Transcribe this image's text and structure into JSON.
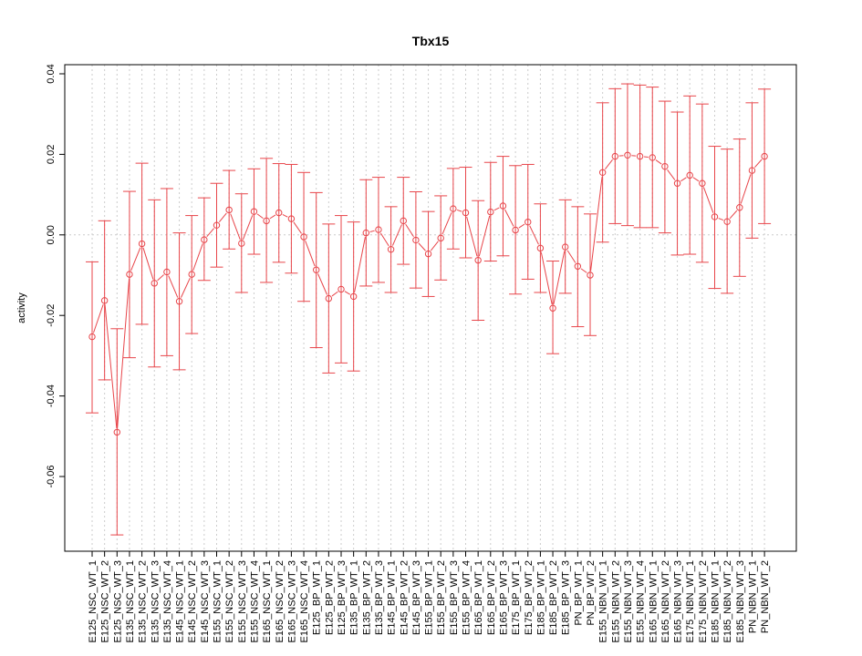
{
  "chart_data": {
    "type": "line",
    "title": "Tbx15",
    "xlabel": "",
    "ylabel": "activity",
    "ylim": [
      -0.08,
      0.04
    ],
    "yticks": [
      0.04,
      0.02,
      0.0,
      -0.02,
      -0.04,
      -0.06
    ],
    "ytick_labels": [
      "0.04",
      "0.02",
      "0.00",
      "-0.02",
      "-0.04",
      "-0.06"
    ],
    "grid": true,
    "zero_line": true,
    "series_color": "#e8454a",
    "grid_color": "#cccccc",
    "categories": [
      "E125_NSC_WT_1",
      "E125_NSC_WT_2",
      "E125_NSC_WT_3",
      "E135_NSC_WT_1",
      "E135_NSC_WT_2",
      "E135_NSC_WT_3",
      "E135_NSC_WT_4",
      "E145_NSC_WT_1",
      "E145_NSC_WT_2",
      "E145_NSC_WT_3",
      "E155_NSC_WT_1",
      "E155_NSC_WT_2",
      "E155_NSC_WT_3",
      "E155_NSC_WT_4",
      "E165_NSC_WT_1",
      "E165_NSC_WT_2",
      "E165_NSC_WT_3",
      "E165_NSC_WT_4",
      "E125_BP_WT_1",
      "E125_BP_WT_2",
      "E125_BP_WT_3",
      "E135_BP_WT_1",
      "E135_BP_WT_2",
      "E135_BP_WT_3",
      "E145_BP_WT_1",
      "E145_BP_WT_2",
      "E145_BP_WT_3",
      "E155_BP_WT_1",
      "E155_BP_WT_2",
      "E155_BP_WT_3",
      "E155_BP_WT_4",
      "E165_BP_WT_1",
      "E165_BP_WT_2",
      "E165_BP_WT_3",
      "E175_BP_WT_1",
      "E175_BP_WT_2",
      "E185_BP_WT_1",
      "E185_BP_WT_2",
      "E185_BP_WT_3",
      "PN_BP_WT_1",
      "PN_BP_WT_2",
      "E155_NBN_WT_1",
      "E155_NBN_WT_2",
      "E155_NBN_WT_3",
      "E155_NBN_WT_4",
      "E165_NBN_WT_1",
      "E165_NBN_WT_2",
      "E165_NBN_WT_3",
      "E175_NBN_WT_1",
      "E175_NBN_WT_2",
      "E185_NBN_WT_1",
      "E185_NBN_WT_2",
      "E185_NBN_WT_3",
      "PN_NBN_WT_1",
      "PN_NBN_WT_2"
    ],
    "values": [
      -0.0253,
      -0.0163,
      -0.049,
      -0.0098,
      -0.0022,
      -0.012,
      -0.0092,
      -0.0165,
      -0.0098,
      -0.0012,
      0.0024,
      0.0062,
      -0.0021,
      0.0058,
      0.0035,
      0.0055,
      0.004,
      -0.0005,
      -0.0087,
      -0.0158,
      -0.0135,
      -0.0153,
      0.0005,
      0.0013,
      -0.0036,
      0.0035,
      -0.0013,
      -0.0047,
      -0.0008,
      0.0065,
      0.0055,
      -0.0063,
      0.0057,
      0.0072,
      0.0012,
      0.0032,
      -0.0033,
      -0.0182,
      -0.003,
      -0.0078,
      -0.01,
      0.0155,
      0.0195,
      0.0198,
      0.0195,
      0.0192,
      0.017,
      0.0128,
      0.0148,
      0.0128,
      0.0045,
      0.0033,
      0.0068,
      0.016,
      0.0195
    ],
    "upper": [
      -0.0067,
      0.0035,
      -0.0233,
      0.0108,
      0.0178,
      0.0087,
      0.0115,
      0.0005,
      0.0048,
      0.0092,
      0.0128,
      0.016,
      0.0102,
      0.0164,
      0.019,
      0.0177,
      0.0175,
      0.0155,
      0.0105,
      0.0027,
      0.0048,
      0.0032,
      0.0137,
      0.0143,
      0.007,
      0.0143,
      0.0107,
      0.0058,
      0.0097,
      0.0165,
      0.0168,
      0.0085,
      0.018,
      0.0195,
      0.0172,
      0.0175,
      0.0077,
      -0.0065,
      0.0087,
      0.007,
      0.0052,
      0.0328,
      0.0363,
      0.0375,
      0.0372,
      0.0367,
      0.0332,
      0.0305,
      0.0345,
      0.0325,
      0.022,
      0.0213,
      0.0238,
      0.0328,
      0.0362
    ],
    "lower": [
      -0.0442,
      -0.036,
      -0.0745,
      -0.0305,
      -0.0222,
      -0.0328,
      -0.03,
      -0.0335,
      -0.0245,
      -0.0113,
      -0.008,
      -0.0035,
      -0.0143,
      -0.0048,
      -0.0118,
      -0.0068,
      -0.0095,
      -0.0165,
      -0.028,
      -0.0343,
      -0.0318,
      -0.0338,
      -0.0127,
      -0.0118,
      -0.0143,
      -0.0073,
      -0.0132,
      -0.0153,
      -0.0112,
      -0.0035,
      -0.0057,
      -0.0212,
      -0.0065,
      -0.0052,
      -0.0147,
      -0.011,
      -0.0143,
      -0.0295,
      -0.0145,
      -0.0228,
      -0.025,
      -0.0018,
      0.0028,
      0.0023,
      0.0018,
      0.0018,
      0.0005,
      -0.005,
      -0.0048,
      -0.0068,
      -0.0133,
      -0.0145,
      -0.0103,
      -0.0008,
      0.0028
    ]
  }
}
